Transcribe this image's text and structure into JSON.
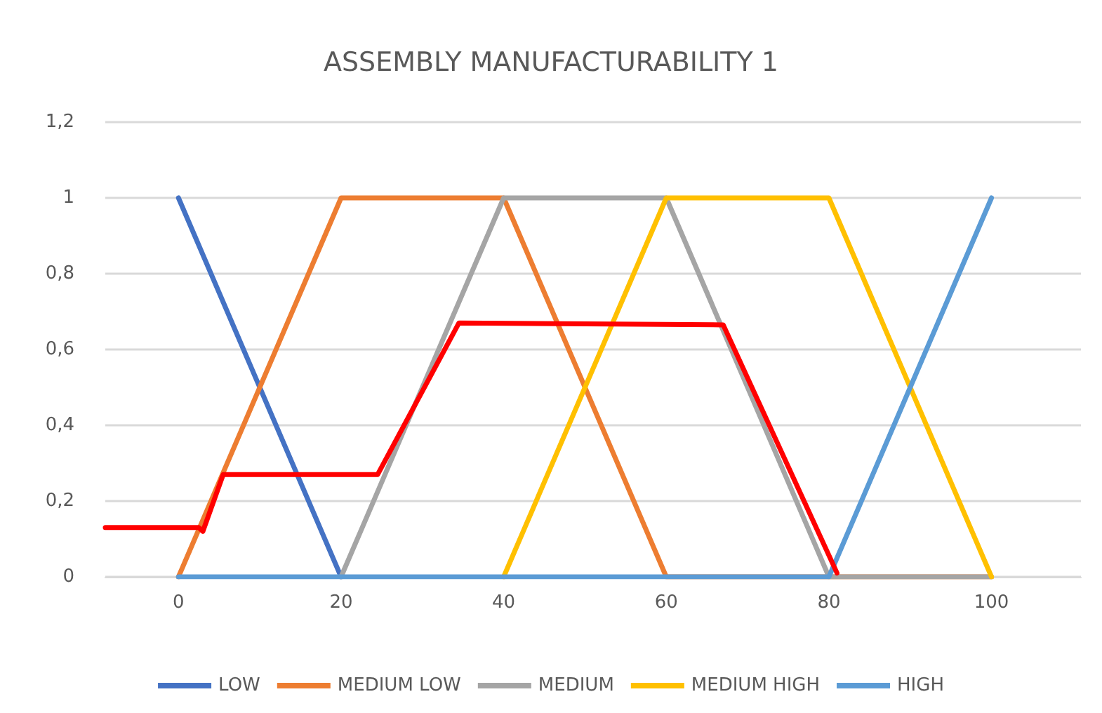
{
  "chart_data": {
    "type": "line",
    "title": "ASSEMBLY MANUFACTURABILITY 1",
    "xlim": [
      -9,
      111
    ],
    "xticks": [
      0,
      20,
      40,
      60,
      80,
      100
    ],
    "ylim": [
      0,
      1.2
    ],
    "yticks": [
      {
        "value": 0,
        "label": "0"
      },
      {
        "value": 0.2,
        "label": "0,2"
      },
      {
        "value": 0.4,
        "label": "0,4"
      },
      {
        "value": 0.6,
        "label": "0,6"
      },
      {
        "value": 0.8,
        "label": "0,8"
      },
      {
        "value": 1,
        "label": "1"
      },
      {
        "value": 1.2,
        "label": "1,2"
      }
    ],
    "grid": "y",
    "legend": "bottom",
    "marker": "none",
    "line_style": "solid",
    "series": [
      {
        "name": "LOW",
        "color": "#4472c4",
        "x": [
          0,
          20
        ],
        "values": [
          1,
          0
        ]
      },
      {
        "name": "MEDIUM LOW",
        "color": "#ed7d31",
        "x": [
          0,
          20,
          40,
          60,
          100
        ],
        "values": [
          0,
          1,
          1,
          0,
          0
        ]
      },
      {
        "name": "MEDIUM",
        "color": "#a5a5a5",
        "x": [
          20,
          40,
          60,
          80,
          100
        ],
        "values": [
          0,
          1,
          1,
          0,
          0
        ]
      },
      {
        "name": "MEDIUM HIGH",
        "color": "#ffc000",
        "x": [
          40,
          60,
          80,
          100
        ],
        "values": [
          0,
          1,
          1,
          0
        ]
      },
      {
        "name": "HIGH",
        "color": "#5b9bd5",
        "x": [
          0,
          80,
          100
        ],
        "values": [
          0,
          0,
          1
        ]
      },
      {
        "color": "#ff0000",
        "x": [
          -9,
          2.5,
          3,
          5.5,
          24.5,
          34.5,
          67,
          81
        ],
        "values": [
          0.13,
          0.13,
          0.12,
          0.27,
          0.27,
          0.67,
          0.665,
          0.01
        ]
      }
    ]
  }
}
